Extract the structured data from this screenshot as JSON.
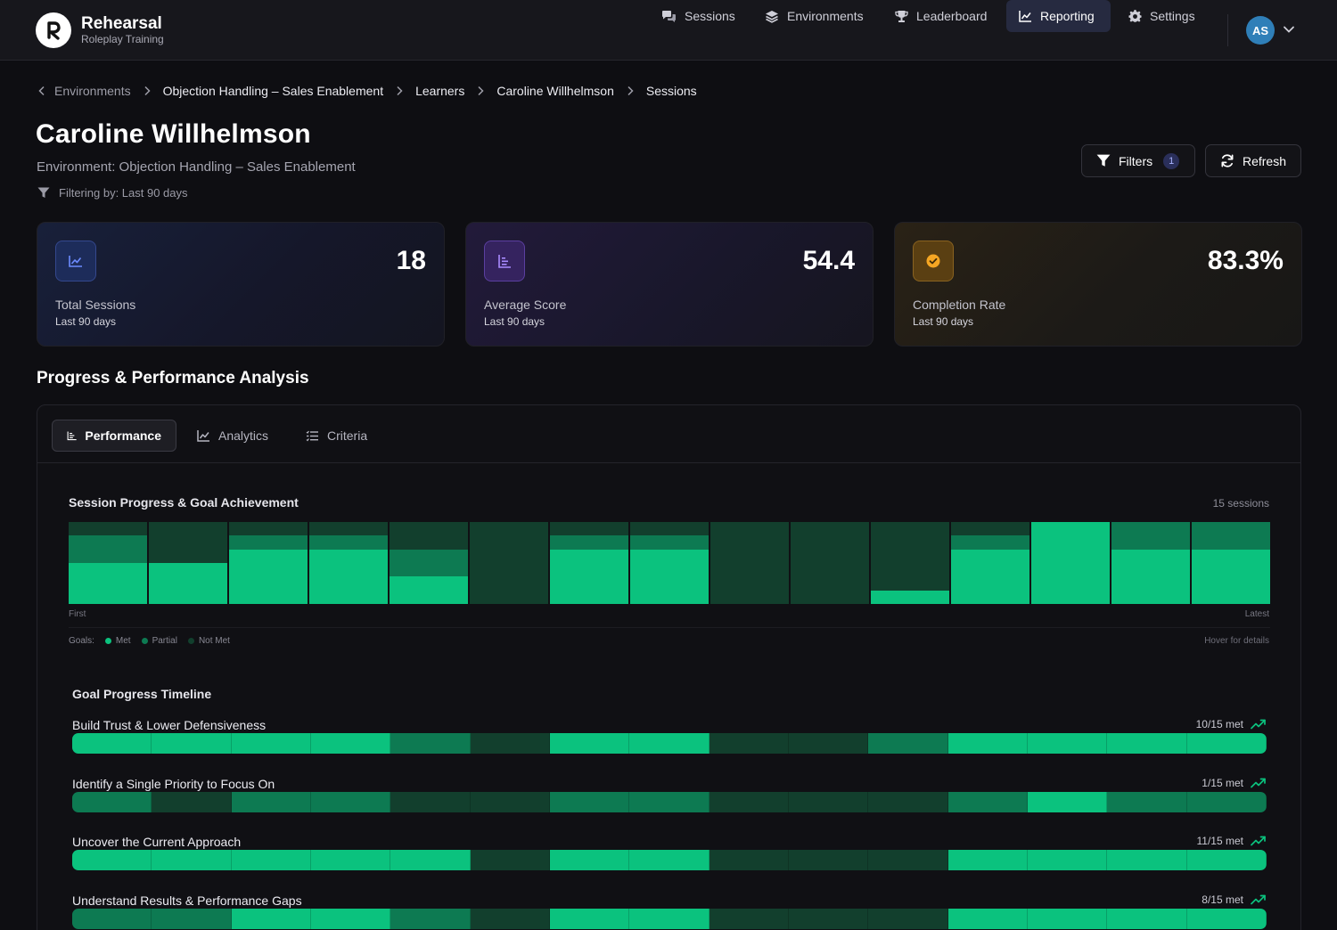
{
  "app": {
    "name": "Rehearsal",
    "tagline": "Roleplay Training"
  },
  "nav": {
    "items": [
      {
        "label": "Sessions",
        "icon": "chat-bubbles-icon",
        "active": false
      },
      {
        "label": "Environments",
        "icon": "layers-icon",
        "active": false
      },
      {
        "label": "Leaderboard",
        "icon": "trophy-icon",
        "active": false
      },
      {
        "label": "Reporting",
        "icon": "line-chart-icon",
        "active": true
      },
      {
        "label": "Settings",
        "icon": "gear-icon",
        "active": false
      }
    ],
    "avatar_initials": "AS"
  },
  "breadcrumb": [
    "Environments",
    "Objection Handling – Sales Enablement",
    "Learners",
    "Caroline Willhelmson",
    "Sessions"
  ],
  "header": {
    "title": "Caroline Willhelmson",
    "environment": "Environment: Objection Handling – Sales Enablement",
    "filtering": "Filtering by: Last 90 days",
    "filters_label": "Filters",
    "filters_count": "1",
    "refresh_label": "Refresh"
  },
  "stats": [
    {
      "value": "18",
      "label": "Total Sessions",
      "sub": "Last 90 days",
      "icon": "trend-chart-icon",
      "accent": "#4a6cf0"
    },
    {
      "value": "54.4",
      "label": "Average Score",
      "sub": "Last 90 days",
      "icon": "list-chart-icon",
      "accent": "#8b5cf6"
    },
    {
      "value": "83.3%",
      "label": "Completion Rate",
      "sub": "Last 90 days",
      "icon": "check-circle-icon",
      "accent": "#f5a623"
    }
  ],
  "section": {
    "title": "Progress & Performance Analysis",
    "tabs": [
      {
        "label": "Performance",
        "icon": "bar-list-icon",
        "active": true
      },
      {
        "label": "Analytics",
        "icon": "line-chart-icon",
        "active": false
      },
      {
        "label": "Criteria",
        "icon": "checklist-icon",
        "active": false
      }
    ]
  },
  "progress_chart": {
    "title": "Session Progress & Goal Achievement",
    "count_label": "15 sessions",
    "first_label": "First",
    "latest_label": "Latest",
    "legend_prefix": "Goals:",
    "legend": [
      {
        "label": "Met",
        "color": "#0bc27e"
      },
      {
        "label": "Partial",
        "color": "#0d7a52"
      },
      {
        "label": "Not Met",
        "color": "#123f2d"
      }
    ],
    "hover_hint": "Hover for details"
  },
  "chart_data": {
    "type": "bar",
    "stacked": true,
    "categories": [
      "1",
      "2",
      "3",
      "4",
      "5",
      "6",
      "7",
      "8",
      "9",
      "10",
      "11",
      "12",
      "13",
      "14",
      "15"
    ],
    "series": [
      {
        "name": "Met",
        "values": [
          3,
          3,
          4,
          4,
          2,
          0,
          4,
          4,
          0,
          0,
          1,
          4,
          6,
          4,
          4
        ]
      },
      {
        "name": "Partial",
        "values": [
          2,
          0,
          1,
          1,
          2,
          0,
          1,
          1,
          0,
          0,
          0,
          1,
          0,
          2,
          2
        ]
      },
      {
        "name": "Not Met",
        "values": [
          1,
          3,
          1,
          1,
          2,
          6,
          1,
          1,
          6,
          6,
          5,
          1,
          0,
          0,
          0
        ]
      }
    ]
  },
  "timeline": {
    "title": "Goal Progress Timeline",
    "goals": [
      {
        "name": "Build Trust & Lower Defensiveness",
        "met_label": "10/15 met",
        "cells": [
          "met",
          "met",
          "met",
          "met",
          "partial",
          "not",
          "met",
          "met",
          "not",
          "not",
          "partial",
          "met",
          "met",
          "met",
          "met"
        ]
      },
      {
        "name": "Identify a Single Priority to Focus On",
        "met_label": "1/15 met",
        "cells": [
          "partial",
          "not",
          "partial",
          "partial",
          "not",
          "not",
          "partial",
          "partial",
          "not",
          "not",
          "not",
          "partial",
          "met",
          "partial",
          "partial"
        ]
      },
      {
        "name": "Uncover the Current Approach",
        "met_label": "11/15 met",
        "cells": [
          "met",
          "met",
          "met",
          "met",
          "met",
          "not",
          "met",
          "met",
          "not",
          "not",
          "not",
          "met",
          "met",
          "met",
          "met"
        ]
      },
      {
        "name": "Understand Results & Performance Gaps",
        "met_label": "8/15 met",
        "cells": [
          "partial",
          "partial",
          "met",
          "met",
          "partial",
          "not",
          "met",
          "met",
          "not",
          "not",
          "not",
          "met",
          "met",
          "met",
          "met"
        ]
      }
    ]
  }
}
